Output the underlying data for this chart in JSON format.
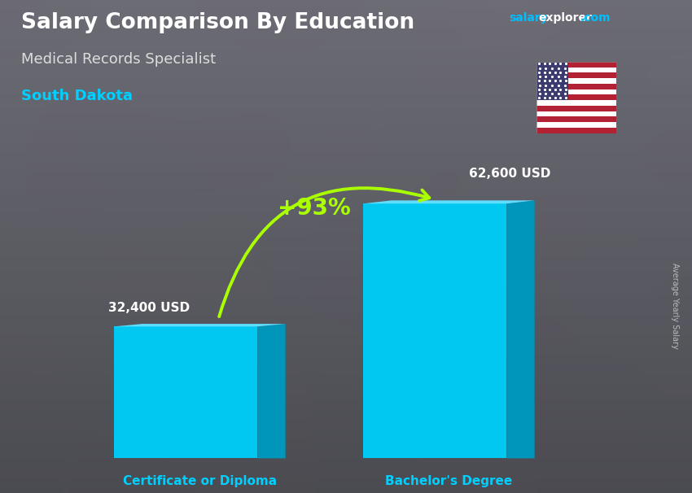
{
  "title": "Salary Comparison By Education",
  "subtitle": "Medical Records Specialist",
  "location": "South Dakota",
  "categories": [
    "Certificate or Diploma",
    "Bachelor's Degree"
  ],
  "values": [
    32400,
    62600
  ],
  "labels": [
    "32,400 USD",
    "62,600 USD"
  ],
  "pct_change": "+93%",
  "bar_color_front": "#00C8F0",
  "bar_color_side": "#0095BB",
  "bar_color_top": "#60DEFF",
  "title_color": "#FFFFFF",
  "subtitle_color": "#DDDDDD",
  "location_color": "#00CFFF",
  "label_color": "#FFFFFF",
  "category_color": "#00CFFF",
  "pct_color": "#AAFF00",
  "bg_color": "#808080",
  "ylabel_text": "Average Yearly Salary",
  "ylabel_color": "#BBBBBB",
  "fig_width": 8.5,
  "fig_height": 6.06,
  "dpi": 100
}
